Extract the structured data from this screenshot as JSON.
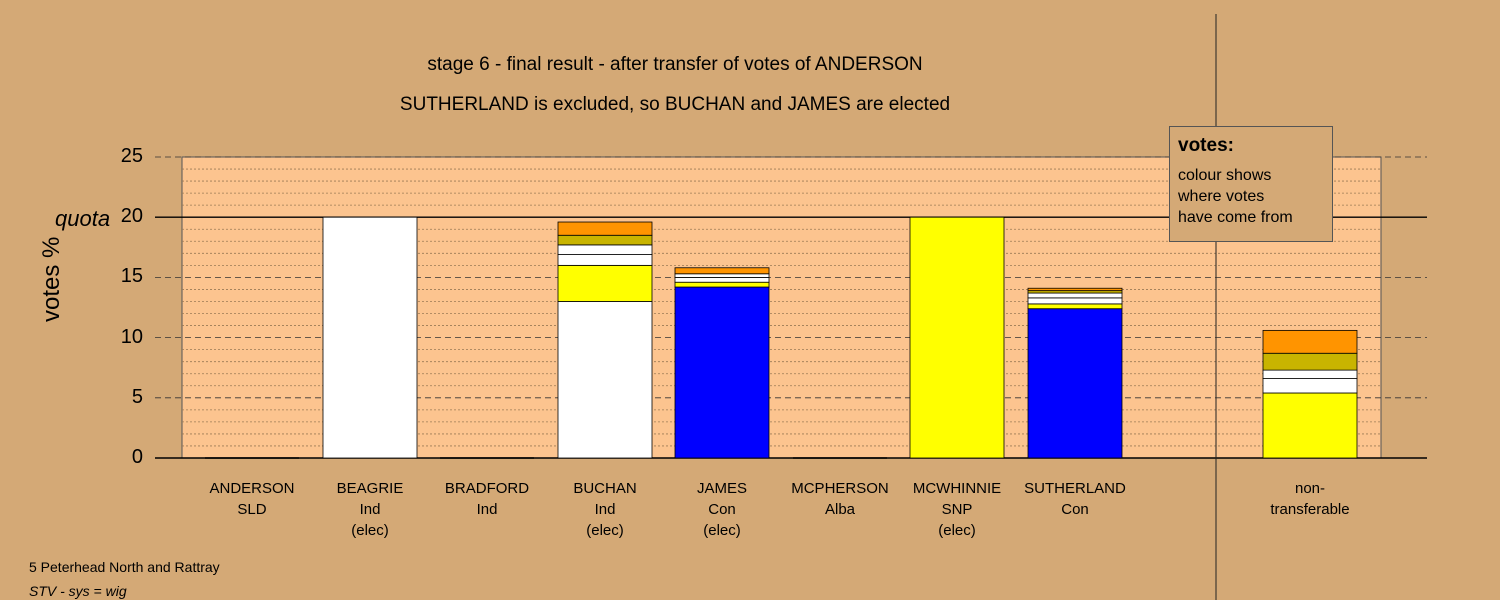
{
  "chart_data": {
    "type": "bar",
    "stacked": true,
    "title": "stage 6 - final result - after transfer of votes of ANDERSON",
    "subtitle": "SUTHERLAND is excluded, so BUCHAN and JAMES are elected",
    "ylabel": "votes %",
    "quota_label": "quota",
    "quota": 20,
    "ylim": [
      0,
      25
    ],
    "yticks": [
      0,
      5,
      10,
      15,
      20,
      25
    ],
    "grid": true,
    "candidates": [
      {
        "name": "ANDERSON",
        "party": "SLD",
        "status": ""
      },
      {
        "name": "BEAGRIE",
        "party": "Ind",
        "status": "(elec)"
      },
      {
        "name": "BRADFORD",
        "party": "Ind",
        "status": ""
      },
      {
        "name": "BUCHAN",
        "party": "Ind",
        "status": "(elec)"
      },
      {
        "name": "JAMES",
        "party": "Con",
        "status": "(elec)"
      },
      {
        "name": "MCPHERSON",
        "party": "Alba",
        "status": ""
      },
      {
        "name": "MCWHINNIE",
        "party": "SNP",
        "status": "(elec)"
      },
      {
        "name": "SUTHERLAND",
        "party": "Con",
        "status": ""
      },
      {
        "name": "non-",
        "party": "transferable",
        "status": ""
      }
    ],
    "stacks": [
      [],
      [
        {
          "color": "#ffffff",
          "value": 20.0
        }
      ],
      [],
      [
        {
          "color": "#ffffff",
          "value": 13.0
        },
        {
          "color": "#ffff00",
          "value": 3.0
        },
        {
          "color": "#ffffff",
          "value": 0.9
        },
        {
          "color": "#ffffff",
          "value": 0.8
        },
        {
          "color": "#c8b400",
          "value": 0.8
        },
        {
          "color": "#ff9400",
          "value": 1.1
        }
      ],
      [
        {
          "color": "#0000ff",
          "value": 14.2
        },
        {
          "color": "#ffff00",
          "value": 0.4
        },
        {
          "color": "#ffffff",
          "value": 0.4
        },
        {
          "color": "#ffffff",
          "value": 0.3
        },
        {
          "color": "#ff9400",
          "value": 0.5
        }
      ],
      [],
      [
        {
          "color": "#ffff00",
          "value": 20.0
        }
      ],
      [
        {
          "color": "#0000ff",
          "value": 12.4
        },
        {
          "color": "#ffff00",
          "value": 0.4
        },
        {
          "color": "#ffffff",
          "value": 0.5
        },
        {
          "color": "#ffffff",
          "value": 0.4
        },
        {
          "color": "#c8b400",
          "value": 0.2
        },
        {
          "color": "#ff9400",
          "value": 0.2
        }
      ],
      [
        {
          "color": "#ffff00",
          "value": 5.4
        },
        {
          "color": "#ffffff",
          "value": 1.2
        },
        {
          "color": "#ffffff",
          "value": 0.7
        },
        {
          "color": "#c8b400",
          "value": 1.4
        },
        {
          "color": "#ff9400",
          "value": 1.9
        }
      ]
    ]
  },
  "legend": {
    "heading": "votes:",
    "lines": [
      "colour shows",
      "where votes",
      "have come from"
    ]
  },
  "footer": {
    "ward": "5 Peterhead North and Rattray",
    "system": "STV - sys = wig"
  },
  "colors": {
    "background": "#d4a976",
    "plot_area": "#fcc48f",
    "white": "#ffffff",
    "yellow": "#ffff00",
    "blue": "#0000ff",
    "olive": "#c8b400",
    "orange": "#ff9400"
  }
}
